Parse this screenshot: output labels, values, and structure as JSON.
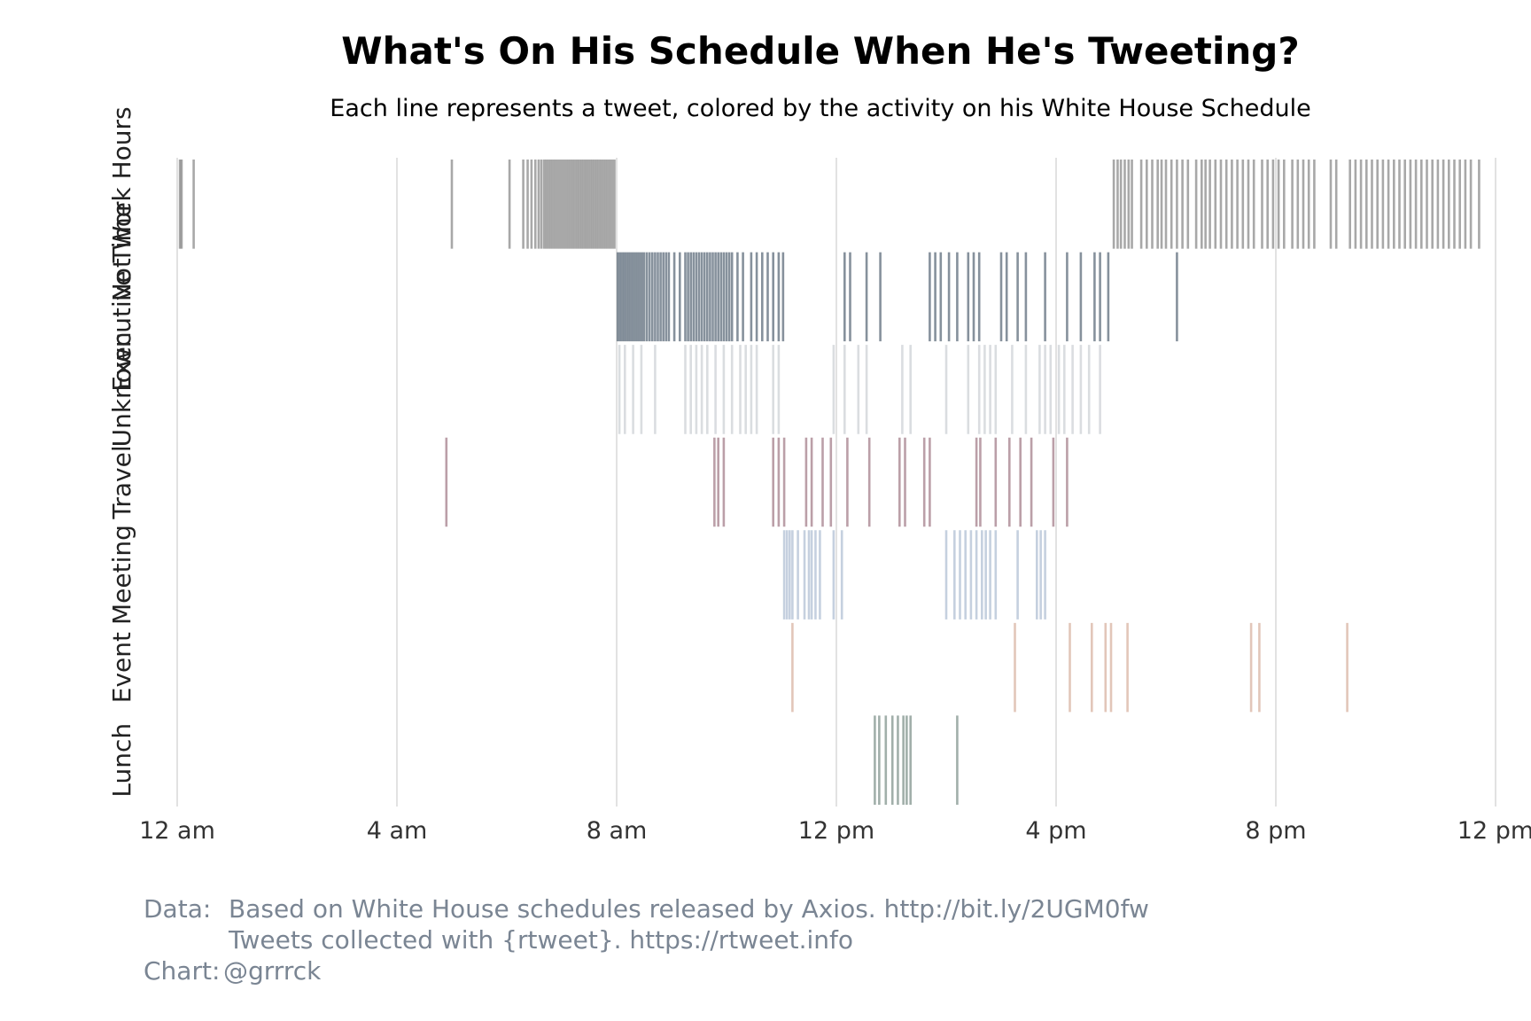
{
  "chart_data": {
    "type": "strip",
    "title": "What's On His Schedule When He's Tweeting?",
    "subtitle": "Each line represents a tweet, colored by the activity on his White House Schedule",
    "xlabel": "",
    "ylabel": "",
    "x_unit": "hour of day",
    "xlim": [
      0,
      24
    ],
    "x_ticks": [
      {
        "value": 0,
        "label": "12 am"
      },
      {
        "value": 4,
        "label": "4 am"
      },
      {
        "value": 8,
        "label": "8 am"
      },
      {
        "value": 12,
        "label": "12 pm"
      },
      {
        "value": 16,
        "label": "4 pm"
      },
      {
        "value": 20,
        "label": "8 pm"
      },
      {
        "value": 24,
        "label": "12 pm"
      }
    ],
    "grid": true,
    "legend": "none",
    "series": [
      {
        "name": "Not Work Hours",
        "color": "#6e6e6e",
        "opacity": 0.6,
        "x": [
          0.05,
          0.08,
          0.3,
          5.0,
          6.05,
          6.3,
          6.38,
          6.45,
          6.52,
          6.58,
          6.63,
          6.68,
          6.72,
          6.76,
          6.8,
          6.84,
          6.88,
          6.92,
          6.96,
          7.0,
          7.04,
          7.08,
          7.12,
          7.16,
          7.2,
          7.24,
          7.28,
          7.32,
          7.36,
          7.4,
          7.44,
          7.48,
          7.52,
          7.56,
          7.6,
          7.64,
          7.68,
          7.72,
          7.76,
          7.8,
          7.84,
          7.88,
          7.92,
          7.96,
          17.05,
          17.12,
          17.18,
          17.25,
          17.32,
          17.38,
          17.55,
          17.65,
          17.75,
          17.85,
          17.92,
          18.0,
          18.1,
          18.2,
          18.3,
          18.4,
          18.55,
          18.65,
          18.72,
          18.8,
          18.9,
          19.0,
          19.1,
          19.2,
          19.3,
          19.4,
          19.5,
          19.6,
          19.75,
          19.85,
          19.95,
          20.05,
          20.15,
          20.3,
          20.4,
          20.5,
          20.6,
          20.7,
          21.0,
          21.1,
          21.35,
          21.45,
          21.55,
          21.65,
          21.75,
          21.85,
          21.95,
          22.05,
          22.15,
          22.25,
          22.35,
          22.45,
          22.55,
          22.65,
          22.75,
          22.85,
          22.95,
          23.05,
          23.15,
          23.25,
          23.35,
          23.45,
          23.55,
          23.7
        ]
      },
      {
        "name": "Executive Time",
        "color": "#36475a",
        "opacity": 0.6,
        "x": [
          8.02,
          8.06,
          8.1,
          8.14,
          8.18,
          8.22,
          8.26,
          8.3,
          8.34,
          8.38,
          8.42,
          8.46,
          8.5,
          8.55,
          8.6,
          8.65,
          8.7,
          8.75,
          8.8,
          8.85,
          8.9,
          8.95,
          9.05,
          9.15,
          9.25,
          9.3,
          9.35,
          9.4,
          9.45,
          9.5,
          9.55,
          9.6,
          9.65,
          9.7,
          9.75,
          9.8,
          9.85,
          9.9,
          9.95,
          10.0,
          10.05,
          10.1,
          10.2,
          10.3,
          10.45,
          10.55,
          10.65,
          10.75,
          10.85,
          10.95,
          11.03,
          12.15,
          12.25,
          12.55,
          12.8,
          13.7,
          13.8,
          13.9,
          14.05,
          14.2,
          14.4,
          14.5,
          14.6,
          15.0,
          15.1,
          15.3,
          15.45,
          15.8,
          16.2,
          16.45,
          16.7,
          16.8,
          16.95,
          18.2
        ]
      },
      {
        "name": "Unknown",
        "color": "#cdd2d6",
        "opacity": 0.75,
        "x": [
          8.05,
          8.15,
          8.3,
          8.45,
          8.7,
          9.25,
          9.35,
          9.45,
          9.55,
          9.65,
          9.8,
          9.95,
          10.1,
          10.25,
          10.35,
          10.45,
          10.55,
          10.85,
          10.95,
          11.95,
          12.15,
          12.4,
          12.55,
          13.2,
          13.35,
          14.0,
          14.4,
          14.6,
          14.7,
          14.8,
          14.9,
          15.2,
          15.45,
          15.7,
          15.8,
          15.9,
          16.05,
          16.15,
          16.3,
          16.45,
          16.6,
          16.8
        ]
      },
      {
        "name": "Travel",
        "color": "#8e5f6e",
        "opacity": 0.6,
        "x": [
          4.9,
          9.78,
          9.85,
          9.95,
          10.85,
          10.95,
          11.05,
          11.45,
          11.55,
          11.75,
          11.9,
          12.2,
          12.6,
          13.15,
          13.25,
          13.6,
          13.7,
          14.55,
          14.62,
          14.9,
          15.15,
          15.35,
          15.55,
          15.95,
          16.2
        ]
      },
      {
        "name": "Meeting",
        "color": "#9eb1c9",
        "opacity": 0.6,
        "x": [
          11.05,
          11.1,
          11.15,
          11.2,
          11.3,
          11.42,
          11.5,
          11.55,
          11.62,
          11.7,
          11.95,
          12.1,
          14.0,
          14.15,
          14.25,
          14.35,
          14.45,
          14.55,
          14.65,
          14.72,
          14.8,
          14.9,
          15.3,
          15.65,
          15.72,
          15.8
        ]
      },
      {
        "name": "Event",
        "color": "#d3a894",
        "opacity": 0.65,
        "x": [
          11.2,
          15.25,
          16.25,
          16.65,
          16.9,
          17.0,
          17.3,
          19.55,
          19.7,
          21.3
        ]
      },
      {
        "name": "Lunch",
        "color": "#6f847d",
        "opacity": 0.65,
        "x": [
          12.7,
          12.78,
          12.9,
          13.02,
          13.12,
          13.22,
          13.28,
          13.35,
          14.2
        ]
      }
    ],
    "caption": [
      {
        "label": "Data:",
        "text": "Based on White House schedules released by Axios. http://bit.ly/2UGM0fw"
      },
      {
        "label": "",
        "text": "Tweets collected with {rtweet}. https://rtweet.info"
      },
      {
        "label": "Chart:",
        "text": "@grrrck"
      }
    ]
  }
}
